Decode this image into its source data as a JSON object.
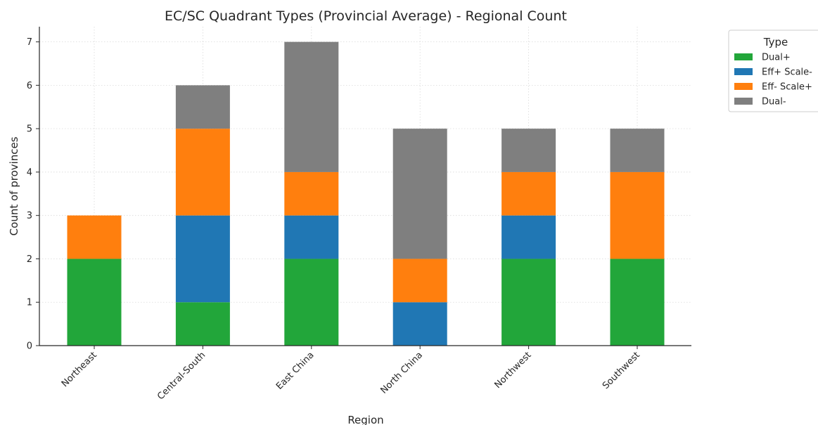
{
  "chart_data": {
    "type": "bar",
    "stacked": true,
    "title": "EC/SC Quadrant Types (Provincial Average) - Regional Count",
    "xlabel": "Region",
    "ylabel": "Count of provinces",
    "ylim": [
      0,
      7.35
    ],
    "yticks": [
      0,
      1,
      2,
      3,
      4,
      5,
      6,
      7
    ],
    "grid": true,
    "legend_title": "Type",
    "legend_position": "outside top-right",
    "categories": [
      "Northeast",
      "Central-South",
      "East China",
      "North China",
      "Northwest",
      "Southwest"
    ],
    "series": [
      {
        "name": "Dual+",
        "color": "#22a63a",
        "values": [
          2,
          1,
          2,
          0,
          2,
          2
        ]
      },
      {
        "name": "Eff+ Scale-",
        "color": "#2077b4",
        "values": [
          0,
          2,
          1,
          1,
          1,
          0
        ]
      },
      {
        "name": "Eff- Scale+",
        "color": "#ff7f0e",
        "values": [
          1,
          2,
          1,
          1,
          1,
          2
        ]
      },
      {
        "name": "Dual-",
        "color": "#7f7f7f",
        "values": [
          0,
          1,
          3,
          3,
          1,
          1
        ]
      }
    ]
  }
}
